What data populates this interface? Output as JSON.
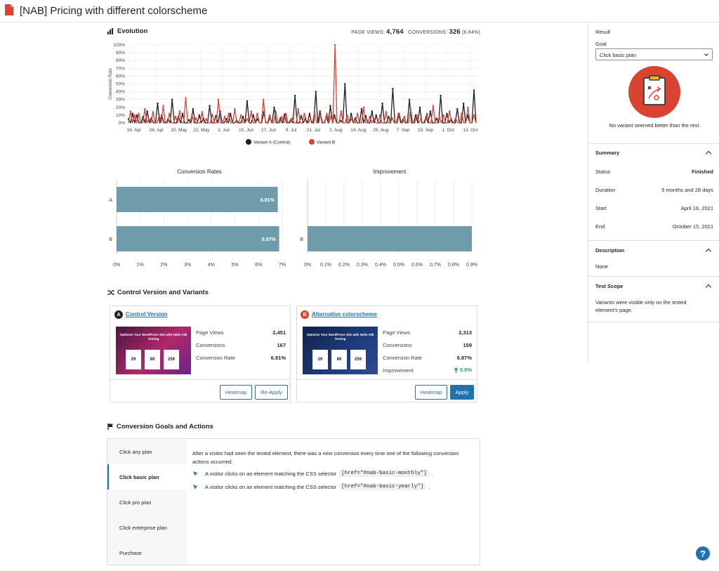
{
  "page": {
    "title": "[NAB] Pricing with different colorscheme"
  },
  "evolution": {
    "heading": "Evolution",
    "page_views_label": "PAGE VIEWS:",
    "page_views_value": "4,764",
    "conversions_label": "CONVERSIONS:",
    "conversions_value": "326",
    "conversions_pct": "(6.84%)"
  },
  "chart_data": [
    {
      "type": "line",
      "ylabel": "Conversion Rate",
      "ylim": [
        0,
        100
      ],
      "yticks": [
        "0%",
        "10%",
        "20%",
        "30%",
        "40%",
        "50%",
        "60%",
        "70%",
        "80%",
        "90%",
        "100%"
      ],
      "xticks": [
        "16. Apr",
        "28. Apr",
        "10. May",
        "22. May",
        "3. Jun",
        "15. Jun",
        "27. Jun",
        "9. Jul",
        "21. Jul",
        "2. Aug",
        "14. Aug",
        "26. Aug",
        "7. Sep",
        "19. Sep",
        "1. Oct",
        "13. Oct"
      ],
      "legend_position": "bottom",
      "series": [
        {
          "name": "Variant A (Control)",
          "color": "#1d1d2b",
          "values": [
            5,
            0,
            12,
            0,
            10,
            0,
            0,
            8,
            0,
            15,
            0,
            6,
            0,
            0,
            25,
            0,
            10,
            0,
            0,
            5,
            0,
            30,
            0,
            0,
            8,
            0,
            12,
            0,
            0,
            4,
            0,
            18,
            0,
            0,
            10,
            0,
            6,
            0,
            0,
            22,
            0,
            0,
            9,
            0,
            15,
            0,
            0,
            5,
            0,
            12,
            0,
            0,
            3,
            0,
            0,
            8,
            0,
            28,
            0,
            0,
            10,
            0,
            5,
            0,
            0,
            14,
            0,
            0,
            7,
            0,
            20,
            0,
            0,
            6,
            0,
            11,
            0,
            0,
            4,
            0,
            35,
            0,
            0,
            9,
            0,
            6,
            0,
            12,
            0,
            0,
            40,
            0,
            15,
            0,
            0,
            8,
            0,
            22,
            0,
            10,
            0,
            0,
            3,
            0,
            50,
            0,
            0,
            12,
            0,
            6,
            0,
            0,
            18,
            0,
            9,
            0,
            0,
            15,
            0,
            10,
            0,
            0,
            25,
            0,
            0,
            8,
            0,
            44,
            0,
            0,
            12,
            0,
            5,
            0,
            0,
            30,
            0,
            0,
            10,
            0,
            20,
            0,
            0,
            8,
            0,
            15,
            0,
            0,
            6,
            0,
            35,
            0,
            0,
            12,
            0,
            5,
            0,
            0,
            18,
            0,
            0,
            25,
            0,
            10,
            0,
            0,
            42,
            0
          ]
        },
        {
          "name": "Variant B",
          "color": "#d94432",
          "values": [
            0,
            15,
            0,
            10,
            0,
            12,
            0,
            0,
            18,
            0,
            5,
            0,
            14,
            0,
            0,
            10,
            0,
            22,
            0,
            0,
            12,
            0,
            0,
            8,
            0,
            15,
            0,
            0,
            32,
            0,
            0,
            10,
            0,
            6,
            0,
            0,
            14,
            0,
            5,
            0,
            0,
            11,
            0,
            0,
            30,
            0,
            0,
            8,
            0,
            12,
            0,
            0,
            18,
            0,
            0,
            10,
            0,
            0,
            5,
            0,
            15,
            0,
            0,
            12,
            0,
            0,
            30,
            0,
            0,
            10,
            0,
            0,
            15,
            0,
            0,
            8,
            0,
            12,
            0,
            0,
            6,
            0,
            0,
            18,
            0,
            0,
            12,
            0,
            0,
            5,
            0,
            14,
            0,
            0,
            10,
            0,
            0,
            12,
            0,
            8,
            0,
            100,
            0,
            0,
            15,
            0,
            0,
            10,
            0,
            5,
            0,
            0,
            12,
            0,
            0,
            20,
            0,
            0,
            8,
            0,
            5,
            0,
            0,
            10,
            0,
            0,
            14,
            0,
            0,
            6,
            0,
            0,
            12,
            0,
            0,
            8,
            0,
            0,
            18,
            0,
            0,
            10,
            0,
            5,
            0,
            0,
            12,
            0,
            0,
            22,
            0,
            0,
            8,
            0,
            10,
            0,
            0,
            15,
            0,
            0,
            6,
            0,
            0,
            12,
            0,
            0,
            20,
            0,
            0,
            10,
            0
          ]
        }
      ]
    },
    {
      "type": "bar",
      "title": "Conversion Rates",
      "categories": [
        "A",
        "B"
      ],
      "values": [
        6.81,
        6.87
      ],
      "labels": [
        "6.81%",
        "6.87%"
      ],
      "xlim": [
        0,
        7
      ],
      "xticks": [
        "0%",
        "1%",
        "2%",
        "3%",
        "4%",
        "5%",
        "6%",
        "7%"
      ],
      "color": "#6f9bab"
    },
    {
      "type": "bar",
      "title": "Improvement",
      "categories": [
        "B"
      ],
      "values": [
        0.9
      ],
      "xlim": [
        0,
        0.9
      ],
      "xticks": [
        "0%",
        "0.1%",
        "0.2%",
        "0.3%",
        "0.4%",
        "0.5%",
        "0.6%",
        "0.7%",
        "0.8%",
        "0.9%"
      ],
      "color": "#6f9bab"
    }
  ],
  "variants": {
    "heading": "Control Version and Variants",
    "a": {
      "badge": "A",
      "title": "Control Version",
      "badge_color": "#1d2327",
      "metrics": [
        {
          "label": "Page Views",
          "value": "2,451"
        },
        {
          "label": "Conversions",
          "value": "167"
        },
        {
          "label": "Conversion Rate",
          "value": "6.81%"
        }
      ],
      "thumb_title": "Optimize Your WordPress Site with Nelio A/B Testing",
      "thumb_prices": [
        "29",
        "89",
        "259"
      ],
      "buttons": {
        "heatmap": "Heatmap",
        "reapply": "Re-Apply"
      }
    },
    "b": {
      "badge": "B",
      "title": "Alternative colorscheme",
      "badge_color": "#d94432",
      "metrics": [
        {
          "label": "Page Views",
          "value": "2,313"
        },
        {
          "label": "Conversions",
          "value": "159"
        },
        {
          "label": "Conversion Rate",
          "value": "6.87%"
        },
        {
          "label": "Improvement",
          "value": "0.9%"
        }
      ],
      "thumb_title": "Optimize Your WordPress Site with Nelio A/B Testing",
      "thumb_prices": [
        "29",
        "89",
        "259"
      ],
      "buttons": {
        "heatmap": "Heatmap",
        "apply": "Apply"
      }
    }
  },
  "goals": {
    "heading": "Conversion Goals and Actions",
    "items": [
      "Click any plan",
      "Click basic plan",
      "Click pro plan",
      "Click enterprise plan",
      "Purchase"
    ],
    "active_index": 1,
    "intro": "After a visitor had seen the tested element, there was a new conversion every time one of the following conversion actions occurred:",
    "action_prefix": "A visitor clicks on an element matching the CSS selector",
    "selectors": [
      "[href=\"#nab-basic-monthly\"]",
      "[href=\"#nab-basic-yearly\"]"
    ]
  },
  "sidebar": {
    "result_heading": "Result",
    "goal_label": "Goal",
    "goal_value": "Click basic plan",
    "no_winner": "No variant seemed better than the rest",
    "summary_heading": "Summary",
    "summary": [
      {
        "label": "Status",
        "value": "Finished"
      },
      {
        "label": "Duration",
        "value": "5 months and 28 days"
      },
      {
        "label": "Start",
        "value": "April 16, 2021"
      },
      {
        "label": "End",
        "value": "October 15, 2021"
      }
    ],
    "description_heading": "Description",
    "description_value": "None",
    "scope_heading": "Test Scope",
    "scope_value": "Variants were visible only on the tested element's page."
  },
  "help": {
    "glyph": "?"
  }
}
